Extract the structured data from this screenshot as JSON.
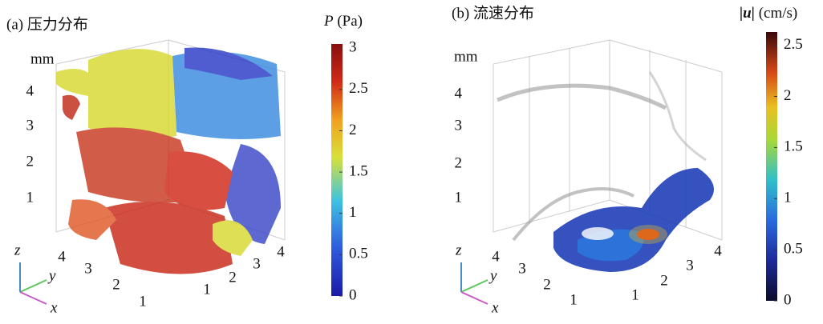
{
  "panels": [
    {
      "title": "(a) 压力分布",
      "unit": "mm",
      "axis_labels": {
        "z": "z",
        "y": "y",
        "x": "x"
      },
      "vertical_ticks": [
        "1",
        "2",
        "3",
        "4"
      ],
      "y_ticks": [
        "4",
        "3",
        "2",
        "1"
      ],
      "x_ticks": [
        "1",
        "2",
        "3",
        "4"
      ],
      "colorbar": {
        "symbol": "P",
        "unit": "(Pa)",
        "range": [
          0,
          3.05
        ],
        "ticks": [
          0,
          0.5,
          1,
          1.5,
          2,
          2.5,
          3
        ]
      }
    },
    {
      "title": "(b) 流速分布",
      "unit": "mm",
      "axis_labels": {
        "z": "z",
        "y": "y",
        "x": "x"
      },
      "vertical_ticks": [
        "1",
        "2",
        "3",
        "4"
      ],
      "y_ticks": [
        "4",
        "3",
        "2",
        "1"
      ],
      "x_ticks": [
        "1",
        "2",
        "3",
        "4"
      ],
      "colorbar": {
        "symbol": "|u|",
        "unit": "(cm/s)",
        "range": [
          0,
          2.63
        ],
        "ticks": [
          0,
          0.5,
          1,
          1.5,
          2,
          2.5
        ]
      }
    }
  ]
}
